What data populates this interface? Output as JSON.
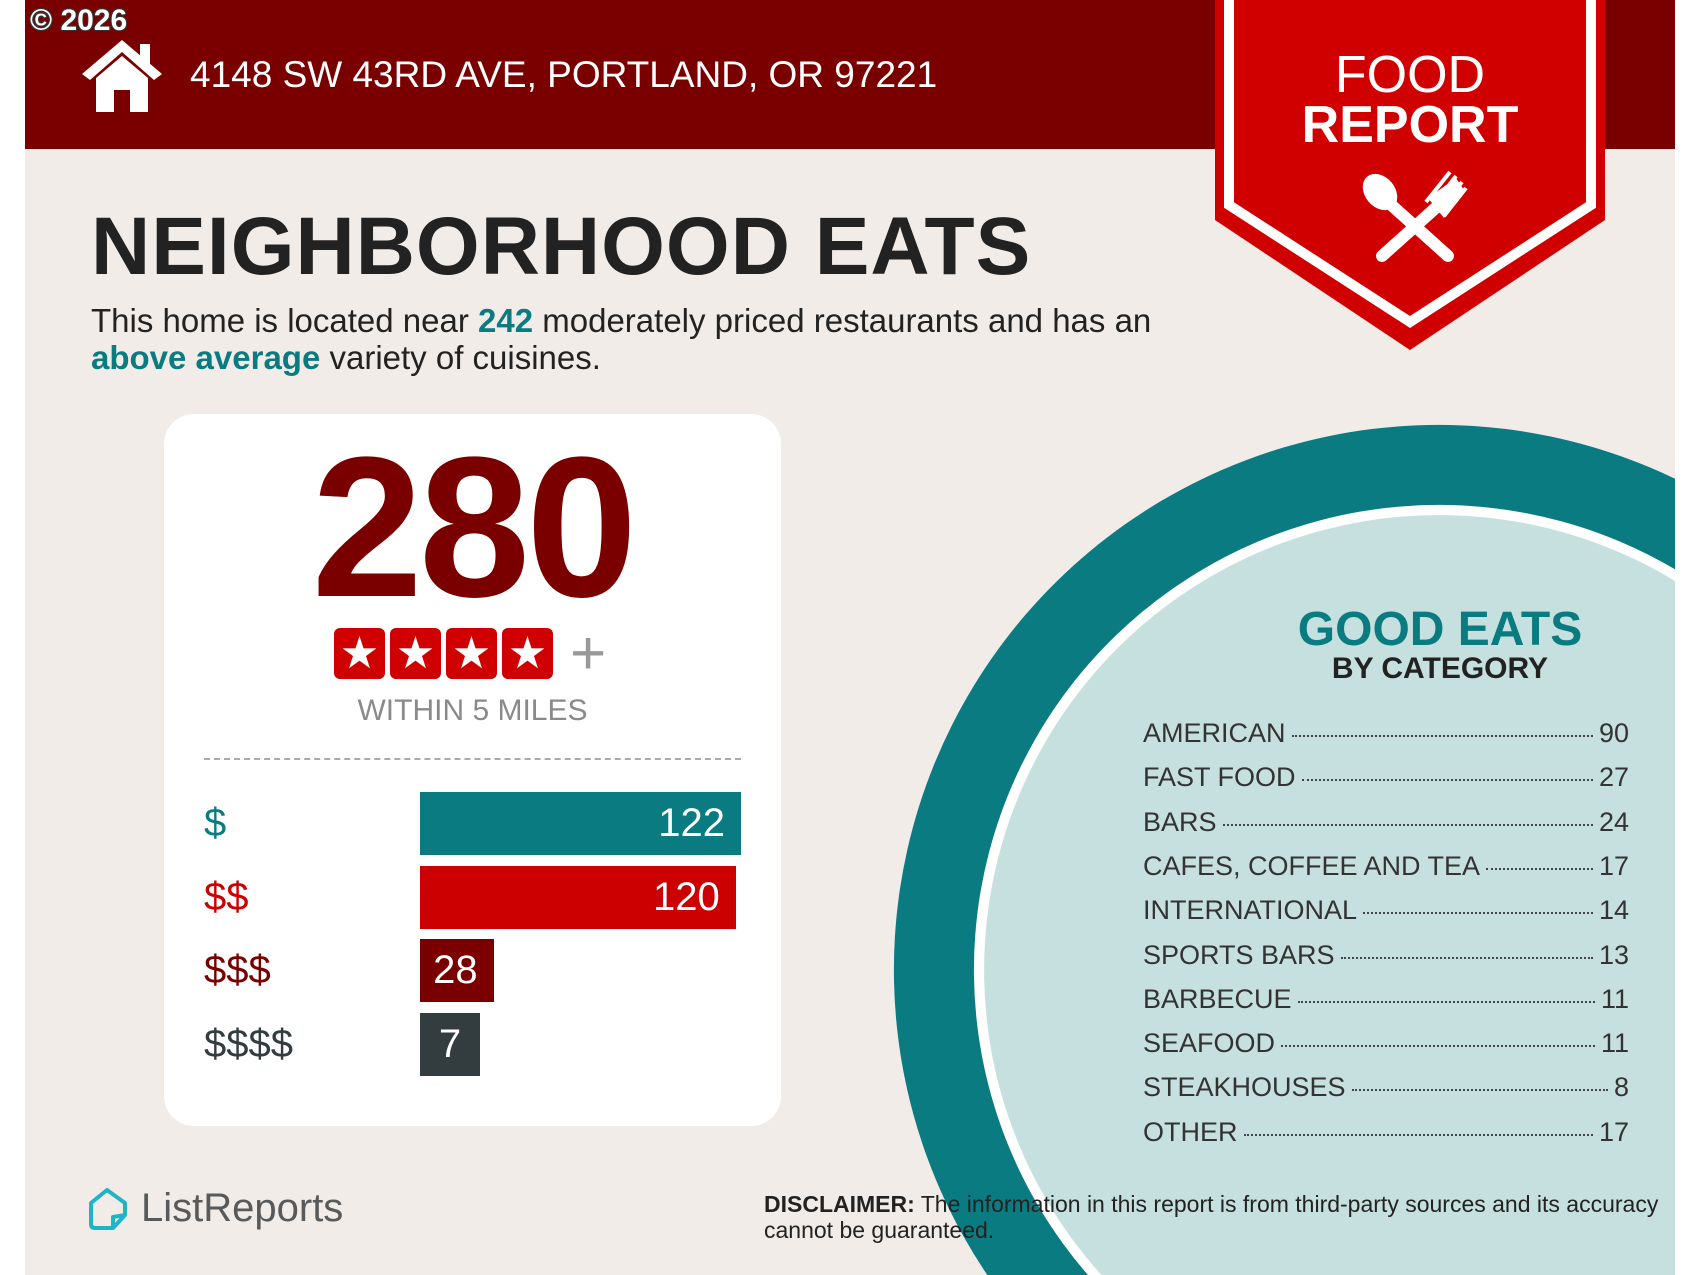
{
  "copyright": "© 2026",
  "header": {
    "address": "4148 SW 43RD AVE, PORTLAND, OR 97221",
    "icon": "house-icon"
  },
  "badge": {
    "line1": "FOOD",
    "line2": "REPORT",
    "icon": "spoon-fork-icon"
  },
  "title": "NEIGHBORHOOD EATS",
  "subtitle": {
    "part1": "This home is located near ",
    "count": "242",
    "part2": " moderately priced restaurants and has an ",
    "variety": "above average",
    "part3": " variety of cuisines."
  },
  "summary": {
    "total": "280",
    "stars": 4,
    "plus": "+",
    "within": "WITHIN 5 MILES"
  },
  "price_levels": [
    {
      "label": "$",
      "value": 122,
      "color": "#0a7b80"
    },
    {
      "label": "$$",
      "value": 120,
      "color": "#cc0000"
    },
    {
      "label": "$$$",
      "value": 28,
      "color": "#7a0000"
    },
    {
      "label": "$$$$",
      "value": 7,
      "color": "#333d40"
    }
  ],
  "categories": {
    "title": "GOOD EATS",
    "subtitle": "BY CATEGORY",
    "items": [
      {
        "name": "AMERICAN",
        "count": "90"
      },
      {
        "name": "FAST FOOD",
        "count": "27"
      },
      {
        "name": "BARS",
        "count": "24"
      },
      {
        "name": "CAFES, COFFEE AND TEA",
        "count": "17"
      },
      {
        "name": "INTERNATIONAL",
        "count": "14"
      },
      {
        "name": "SPORTS BARS",
        "count": "13"
      },
      {
        "name": "BARBECUE",
        "count": "11"
      },
      {
        "name": "SEAFOOD",
        "count": "11"
      },
      {
        "name": "STEAKHOUSES",
        "count": "8"
      },
      {
        "name": "OTHER",
        "count": "17"
      }
    ]
  },
  "disclaimer": {
    "label": "DISCLAIMER:",
    "text": " The information in this report is from third-party sources and its accuracy cannot be guaranteed."
  },
  "logo": {
    "text": "ListReports"
  },
  "colors": {
    "header": "#7a0000",
    "badge": "#d10000",
    "teal": "#0a7b80",
    "light_teal": "#c5e0de",
    "background": "#f1ece8"
  }
}
